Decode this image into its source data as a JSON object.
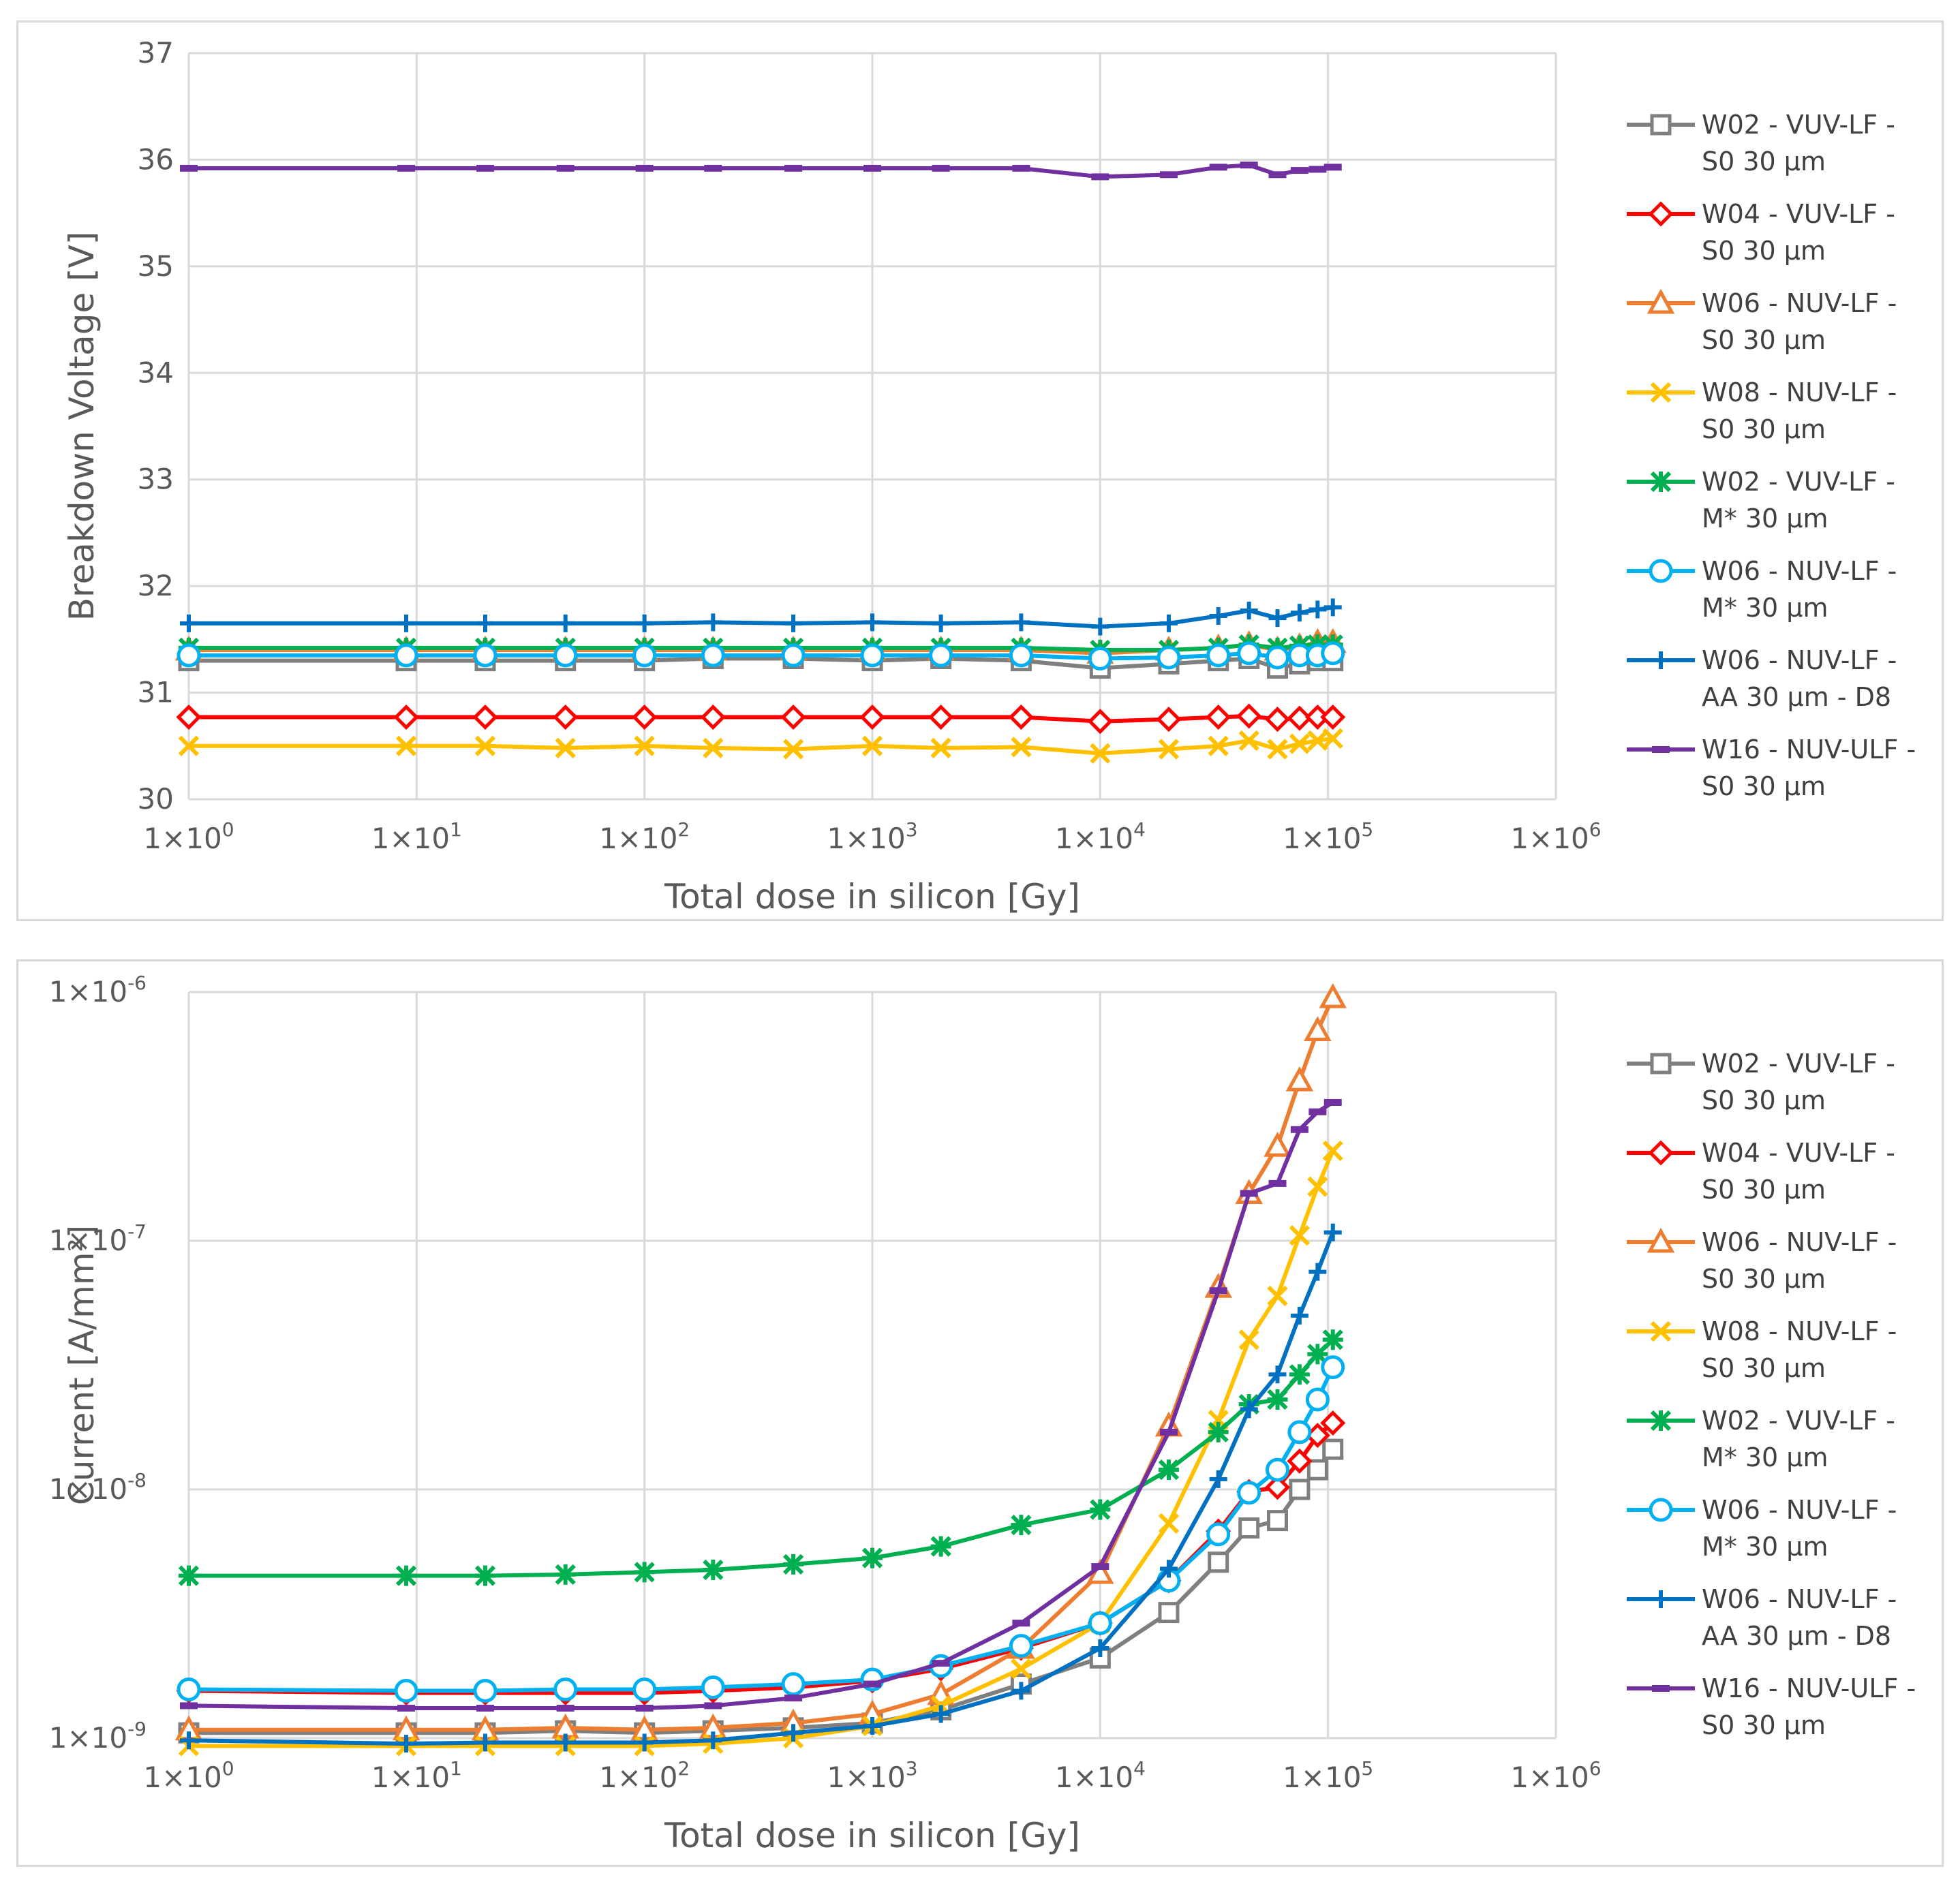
{
  "charts": [
    {
      "id": "top",
      "ylabel": "Breakdown Voltage [V]",
      "xlabel": "Total dose in silicon [Gy]"
    },
    {
      "id": "bottom",
      "ylabel": "Current [A/mm²]",
      "xlabel": "Total dose in silicon [Gy]"
    }
  ],
  "chart_data": [
    {
      "type": "line",
      "xscale": "log",
      "yscale": "linear",
      "xlim": [
        1,
        1000000
      ],
      "ylim": [
        30,
        37
      ],
      "xticks": [
        "1×10^0",
        "1×10^1",
        "1×10^2",
        "1×10^3",
        "1×10^4",
        "1×10^5",
        "1×10^6"
      ],
      "yticks": [
        "30",
        "31",
        "32",
        "33",
        "34",
        "35",
        "36",
        "37"
      ],
      "xlabel": "Total dose in silicon [Gy]",
      "ylabel": "Breakdown Voltage [V]",
      "grid": true,
      "legend_position": "right",
      "x": [
        1,
        9,
        20,
        45,
        100,
        200,
        450,
        1000,
        2000,
        4500,
        10000,
        20000,
        33000,
        45000,
        60000,
        75000,
        90000,
        105000
      ],
      "series": [
        {
          "name": "W02 - VUV-LF - S0 30 µm",
          "color": "#7f7f7f",
          "marker": "square",
          "values": [
            31.3,
            31.3,
            31.3,
            31.3,
            31.3,
            31.32,
            31.32,
            31.3,
            31.32,
            31.3,
            31.23,
            31.27,
            31.3,
            31.32,
            31.23,
            31.27,
            31.3,
            31.3
          ]
        },
        {
          "name": "W04 - VUV-LF - S0 30 µm",
          "color": "#ff0000",
          "marker": "diamond",
          "values": [
            30.77,
            30.77,
            30.77,
            30.77,
            30.77,
            30.77,
            30.77,
            30.77,
            30.77,
            30.77,
            30.73,
            30.75,
            30.77,
            30.78,
            30.75,
            30.76,
            30.77,
            30.77
          ]
        },
        {
          "name": "W06 - NUV-LF - S0 30 µm",
          "color": "#ed7d31",
          "marker": "triangle",
          "values": [
            31.4,
            31.4,
            31.4,
            31.4,
            31.4,
            31.4,
            31.4,
            31.4,
            31.4,
            31.4,
            31.37,
            31.4,
            31.42,
            31.45,
            31.4,
            31.43,
            31.47,
            31.47
          ]
        },
        {
          "name": "W08 - NUV-LF - S0 30 µm",
          "color": "#ffc000",
          "marker": "x",
          "values": [
            30.5,
            30.5,
            30.5,
            30.48,
            30.5,
            30.48,
            30.47,
            30.5,
            30.48,
            30.49,
            30.43,
            30.47,
            30.5,
            30.55,
            30.47,
            30.52,
            30.55,
            30.57
          ]
        },
        {
          "name": "W02 - VUV-LF - M* 30 µm",
          "color": "#00b050",
          "marker": "star",
          "values": [
            31.42,
            31.42,
            31.42,
            31.42,
            31.42,
            31.42,
            31.42,
            31.42,
            31.42,
            31.42,
            31.4,
            31.4,
            31.42,
            31.45,
            31.42,
            31.44,
            31.45,
            31.45
          ]
        },
        {
          "name": "W06 - NUV-LF - M* 30 µm",
          "color": "#00b0f0",
          "marker": "circle",
          "values": [
            31.35,
            31.35,
            31.35,
            31.35,
            31.35,
            31.35,
            31.35,
            31.35,
            31.35,
            31.35,
            31.32,
            31.33,
            31.35,
            31.37,
            31.33,
            31.35,
            31.35,
            31.37
          ]
        },
        {
          "name": "W06 - NUV-LF - AA 30 µm - D8",
          "color": "#0070c0",
          "marker": "plus",
          "values": [
            31.65,
            31.65,
            31.65,
            31.65,
            31.65,
            31.66,
            31.65,
            31.66,
            31.65,
            31.66,
            31.62,
            31.65,
            31.72,
            31.77,
            31.7,
            31.75,
            31.78,
            31.8
          ]
        },
        {
          "name": "W16 - NUV-ULF - S0 30 µm",
          "color": "#7030a0",
          "marker": "dash",
          "values": [
            35.92,
            35.92,
            35.92,
            35.92,
            35.92,
            35.92,
            35.92,
            35.92,
            35.92,
            35.92,
            35.84,
            35.86,
            35.93,
            35.95,
            35.86,
            35.9,
            35.91,
            35.93
          ]
        }
      ]
    },
    {
      "type": "line",
      "xscale": "log",
      "yscale": "log",
      "xlim": [
        1,
        1000000
      ],
      "ylim": [
        1e-09,
        1e-06
      ],
      "xticks": [
        "1×10^0",
        "1×10^1",
        "1×10^2",
        "1×10^3",
        "1×10^4",
        "1×10^5",
        "1×10^6"
      ],
      "yticks": [
        "1×10^-9",
        "1×10^-8",
        "1×10^-7",
        "1×10^-6"
      ],
      "xlabel": "Total dose in silicon [Gy]",
      "ylabel": "Current [A/mm²]",
      "grid": true,
      "legend_position": "right",
      "x": [
        1,
        9,
        20,
        45,
        100,
        200,
        450,
        1000,
        2000,
        4500,
        10000,
        20000,
        33000,
        45000,
        60000,
        75000,
        90000,
        105000
      ],
      "series": [
        {
          "name": "W02 - VUV-LF - S0 30 µm",
          "color": "#7f7f7f",
          "marker": "square",
          "values": [
            1.05e-09,
            1.05e-09,
            1.05e-09,
            1.07e-09,
            1.05e-09,
            1.07e-09,
            1.1e-09,
            1.15e-09,
            1.3e-09,
            1.65e-09,
            2.1e-09,
            3.2e-09,
            5.1e-09,
            7e-09,
            7.5e-09,
            1e-08,
            1.2e-08,
            1.45e-08
          ]
        },
        {
          "name": "W04 - VUV-LF - S0 30 µm",
          "color": "#ff0000",
          "marker": "diamond",
          "values": [
            1.55e-09,
            1.52e-09,
            1.52e-09,
            1.52e-09,
            1.52e-09,
            1.55e-09,
            1.6e-09,
            1.7e-09,
            1.9e-09,
            2.3e-09,
            2.9e-09,
            4.3e-09,
            6.8e-09,
            9.8e-09,
            1.02e-08,
            1.3e-08,
            1.65e-08,
            1.85e-08
          ]
        },
        {
          "name": "W06 - NUV-LF - S0 30 µm",
          "color": "#ed7d31",
          "marker": "triangle",
          "values": [
            1.08e-09,
            1.08e-09,
            1.08e-09,
            1.1e-09,
            1.08e-09,
            1.1e-09,
            1.15e-09,
            1.25e-09,
            1.5e-09,
            2.3e-09,
            4.6e-09,
            1.8e-08,
            6.5e-08,
            1.55e-07,
            2.4e-07,
            4.4e-07,
            7e-07,
            9.5e-07
          ]
        },
        {
          "name": "W08 - NUV-LF - S0 30 µm",
          "color": "#ffc000",
          "marker": "x",
          "values": [
            9.3e-10,
            9.3e-10,
            9.3e-10,
            9.3e-10,
            9.3e-10,
            9.5e-10,
            1e-09,
            1.12e-09,
            1.35e-09,
            1.9e-09,
            2.9e-09,
            7.3e-09,
            1.9e-08,
            4e-08,
            6e-08,
            1.05e-07,
            1.65e-07,
            2.3e-07
          ]
        },
        {
          "name": "W02 - VUV-LF - M* 30 µm",
          "color": "#00b050",
          "marker": "star",
          "values": [
            4.5e-09,
            4.5e-09,
            4.5e-09,
            4.55e-09,
            4.65e-09,
            4.75e-09,
            5e-09,
            5.3e-09,
            5.9e-09,
            7.2e-09,
            8.3e-09,
            1.2e-08,
            1.7e-08,
            2.2e-08,
            2.3e-08,
            2.9e-08,
            3.5e-08,
            4e-08
          ]
        },
        {
          "name": "W06 - NUV-LF - M* 30 µm",
          "color": "#00b0f0",
          "marker": "circle",
          "values": [
            1.57e-09,
            1.55e-09,
            1.55e-09,
            1.57e-09,
            1.57e-09,
            1.6e-09,
            1.65e-09,
            1.72e-09,
            1.95e-09,
            2.35e-09,
            2.9e-09,
            4.3e-09,
            6.6e-09,
            9.7e-09,
            1.2e-08,
            1.7e-08,
            2.3e-08,
            3.1e-08
          ]
        },
        {
          "name": "W06 - NUV-LF - AA 30 µm - D8",
          "color": "#0070c0",
          "marker": "plus",
          "values": [
            9.8e-10,
            9.5e-10,
            9.6e-10,
            9.6e-10,
            9.6e-10,
            9.8e-10,
            1.05e-09,
            1.12e-09,
            1.25e-09,
            1.55e-09,
            2.3e-09,
            4.8e-09,
            1.1e-08,
            2.1e-08,
            2.9e-08,
            5e-08,
            7.5e-08,
            1.08e-07
          ]
        },
        {
          "name": "W16 - NUV-ULF - S0 30 µm",
          "color": "#7030a0",
          "marker": "dash",
          "values": [
            1.35e-09,
            1.32e-09,
            1.32e-09,
            1.32e-09,
            1.32e-09,
            1.35e-09,
            1.45e-09,
            1.65e-09,
            2e-09,
            2.9e-09,
            4.9e-09,
            1.7e-08,
            6.3e-08,
            1.55e-07,
            1.7e-07,
            2.8e-07,
            3.3e-07,
            3.6e-07
          ]
        }
      ]
    }
  ]
}
